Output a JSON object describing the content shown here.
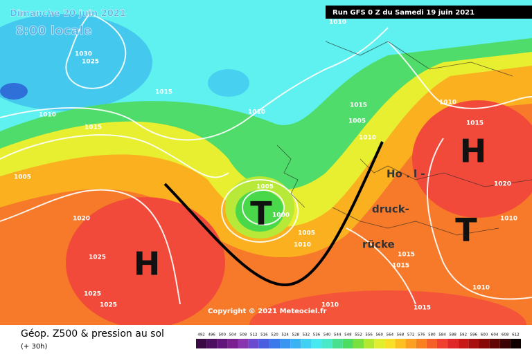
{
  "header": {
    "date": "Dimanche 20 juin 2021",
    "time": "8:00 locale",
    "run": "Run GFS 0 Z du Samedi 19 juin 2021"
  },
  "map": {
    "isobar_labels": [
      1010,
      1030,
      1025,
      1015,
      1010,
      1015,
      1010,
      1015,
      1005,
      1010,
      1010,
      1015,
      1005,
      1005,
      1000,
      1020,
      1020,
      1010,
      1005,
      1010,
      1025,
      1015,
      1015,
      1025,
      1025,
      1010,
      1010,
      1015
    ],
    "systems": [
      "H",
      "T",
      "H",
      "T"
    ],
    "annotations": [
      "Ho . l -",
      "druck-",
      "rücke"
    ],
    "copyright": "Copyright © 2021 Meteociel.fr"
  },
  "legend": {
    "title": "Géop. Z500 & pression au sol",
    "lead": "(+ 30h)",
    "ticks": [
      492,
      496,
      500,
      504,
      508,
      512,
      516,
      520,
      524,
      528,
      532,
      536,
      540,
      544,
      548,
      552,
      556,
      560,
      564,
      568,
      572,
      576,
      580,
      584,
      588,
      592,
      596,
      600,
      604,
      608,
      612
    ],
    "colors": [
      "#3a0a45",
      "#4d1060",
      "#62167a",
      "#7a2090",
      "#8a35b0",
      "#6a4bd0",
      "#4a5fe0",
      "#3a78ec",
      "#3a95f2",
      "#3ab2f4",
      "#40d0f4",
      "#48e8f0",
      "#48e8c8",
      "#48e090",
      "#4cdc60",
      "#7ae040",
      "#b4e830",
      "#e0ee30",
      "#f8e028",
      "#fcc020",
      "#fba020",
      "#f88020",
      "#f46028",
      "#f04030",
      "#e02828",
      "#c81818",
      "#a81010",
      "#880808",
      "#600404",
      "#3a0202",
      "#100000"
    ]
  }
}
